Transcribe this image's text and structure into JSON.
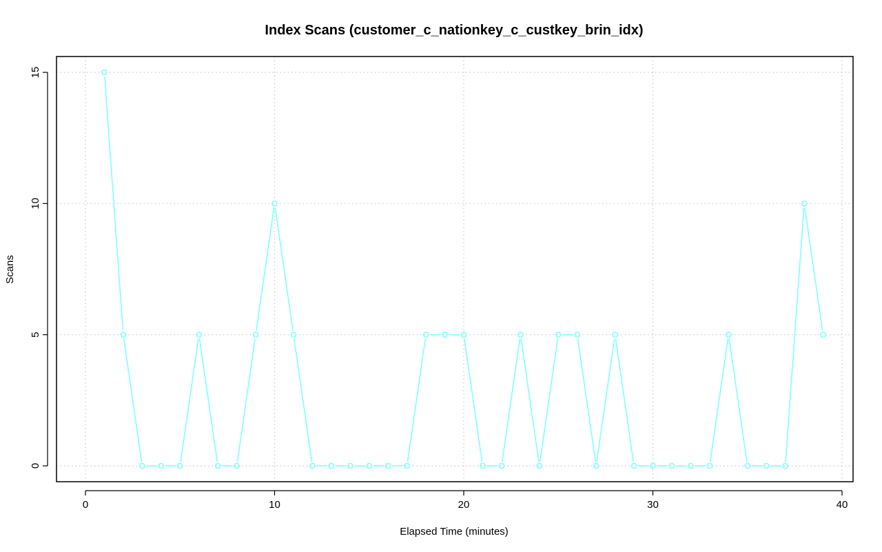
{
  "chart_data": {
    "type": "line",
    "title": "Index Scans (customer_c_nationkey_c_custkey_brin_idx)",
    "xlabel": "Elapsed Time (minutes)",
    "ylabel": "Scans",
    "xlim": [
      0,
      40
    ],
    "ylim": [
      0,
      15
    ],
    "x_ticks": [
      0,
      10,
      20,
      30,
      40
    ],
    "y_ticks": [
      0,
      5,
      10,
      15
    ],
    "grid": true,
    "series": [
      {
        "color": "#7fffff",
        "marker": "circle",
        "x": [
          1,
          2,
          3,
          4,
          5,
          6,
          7,
          8,
          9,
          10,
          11,
          12,
          13,
          14,
          15,
          16,
          17,
          18,
          19,
          20,
          21,
          22,
          23,
          24,
          25,
          26,
          27,
          28,
          29,
          30,
          31,
          32,
          33,
          34,
          35,
          36,
          37,
          38,
          39
        ],
        "values": [
          15,
          5,
          0,
          0,
          0,
          5,
          0,
          0,
          5,
          10,
          5,
          0,
          0,
          0,
          0,
          0,
          0,
          5,
          5,
          5,
          0,
          0,
          5,
          0,
          5,
          5,
          0,
          5,
          0,
          0,
          0,
          0,
          0,
          5,
          0,
          0,
          0,
          10,
          5
        ]
      }
    ]
  }
}
